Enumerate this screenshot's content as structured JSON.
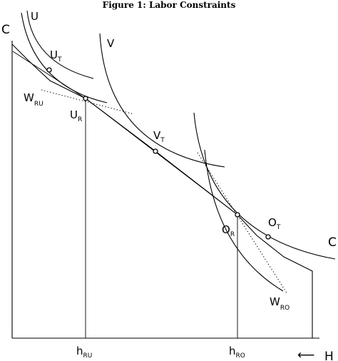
{
  "caption": "Figure 1: Labor Constraints",
  "axes": {
    "y_label": "C",
    "x_label": "H",
    "x_arrow": "⟵"
  },
  "curves": {
    "u": "U",
    "v": "V",
    "c": "C"
  },
  "points": {
    "ut": {
      "main": "U",
      "sub": "T"
    },
    "ur": {
      "main": "U",
      "sub": "R"
    },
    "vt": {
      "main": "V",
      "sub": "T"
    },
    "or": {
      "main": "O",
      "sub": "R"
    },
    "ot": {
      "main": "O",
      "sub": "T"
    }
  },
  "wage_lines": {
    "wru": {
      "main": "W",
      "sub": "RU"
    },
    "wro": {
      "main": "W",
      "sub": "RO"
    }
  },
  "hours": {
    "hru": {
      "main": "h",
      "sub": "RU"
    },
    "hro": {
      "main": "h",
      "sub": "RO"
    }
  }
}
